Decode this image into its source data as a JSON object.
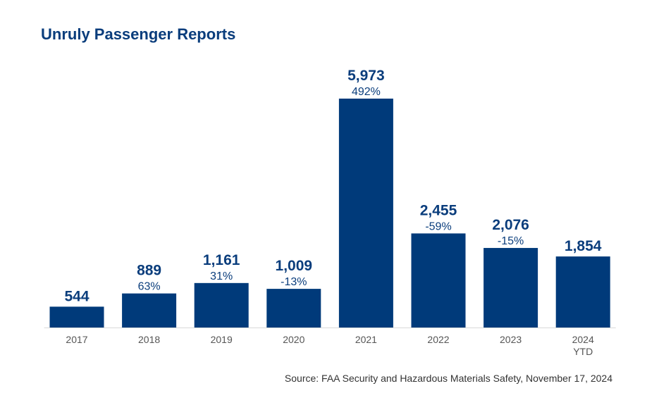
{
  "chart_data": {
    "type": "bar",
    "title": "Unruly Passenger Reports",
    "categories": [
      "2017",
      "2018",
      "2019",
      "2020",
      "2021",
      "2022",
      "2023",
      "2024\nYTD"
    ],
    "values": [
      544,
      889,
      1161,
      1009,
      5973,
      2455,
      2076,
      1854
    ],
    "value_labels": [
      "544",
      "889",
      "1,161",
      "1,009",
      "5,973",
      "2,455",
      "2,076",
      "1,854"
    ],
    "percent_change_labels": [
      "",
      "63%",
      "31%",
      "-13%",
      "492%",
      "-59%",
      "-15%",
      ""
    ],
    "xlabel": "",
    "ylabel": "",
    "ylim": [
      0,
      5973
    ],
    "grid": false,
    "legend": "none",
    "bar_color": "#003a7a",
    "text_color": "#0a3d7c"
  },
  "source": "Source: FAA Security and Hazardous Materials Safety, November 17, 2024"
}
